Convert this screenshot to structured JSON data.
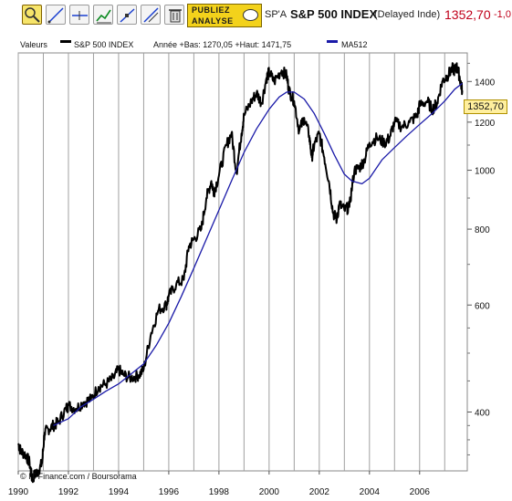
{
  "toolbar": {
    "tools": [
      "zoom-icon",
      "draw-line-icon",
      "horizontal-line-icon",
      "chart-indicator-icon",
      "trend-line-icon",
      "fibonacci-icon",
      "delete-icon"
    ],
    "publiez_line1": "PUBLIEZ",
    "publiez_line2": "ANALYSE"
  },
  "header": {
    "ticker": "SP'A",
    "title": "S&P 500 INDEX",
    "status": "(Delayed Inde)",
    "price": "1352,70",
    "change": "-1,0"
  },
  "legend": {
    "label": "Valeurs",
    "series1": "S&P 500 INDEX",
    "stats": "Année +Bas: 1270,05 +Haut: 1471,75",
    "series2": "MA512"
  },
  "price_box": "1352,70",
  "copyright": "© IT-Finance.com / Boursorama",
  "colors": {
    "price_line": "#000000",
    "ma_line": "#1a1aa8",
    "grid": "#a0a0a0",
    "price_up": "#c0001a",
    "price_box_bg": "#ffef9e"
  },
  "chart_data": {
    "type": "line",
    "y_scale": "log",
    "ylim": [
      320,
      1560
    ],
    "xlim": [
      1990.0,
      2007.9
    ],
    "x_ticks": [
      "1990",
      "1992",
      "1994",
      "1996",
      "1998",
      "2000",
      "2002",
      "2004",
      "2006"
    ],
    "x_tick_values": [
      1990,
      1992,
      1994,
      1996,
      1998,
      2000,
      2002,
      2004,
      2006
    ],
    "y_ticks": [
      "400",
      "600",
      "800",
      "1000",
      "1200",
      "1400"
    ],
    "y_tick_values": [
      400,
      600,
      800,
      1000,
      1200,
      1400
    ],
    "series": [
      {
        "name": "S&P 500 INDEX",
        "x": [
          1990.0,
          1990.1,
          1990.3,
          1990.45,
          1990.55,
          1990.65,
          1990.8,
          1990.95,
          1991.05,
          1991.2,
          1991.4,
          1991.6,
          1991.9,
          1992.0,
          1992.3,
          1992.6,
          1992.9,
          1993.2,
          1993.5,
          1993.8,
          1994.0,
          1994.2,
          1994.5,
          1994.8,
          1995.0,
          1995.3,
          1995.6,
          1995.9,
          1996.0,
          1996.3,
          1996.6,
          1996.8,
          1997.0,
          1997.3,
          1997.5,
          1997.7,
          1997.8,
          1998.0,
          1998.3,
          1998.5,
          1998.7,
          1998.9,
          1999.0,
          1999.3,
          1999.5,
          1999.7,
          1999.9,
          2000.0,
          2000.2,
          2000.5,
          2000.7,
          2000.8,
          2001.0,
          2001.2,
          2001.4,
          2001.6,
          2001.7,
          2001.8,
          2002.0,
          2002.2,
          2002.4,
          2002.55,
          2002.7,
          2002.8,
          2003.0,
          2003.2,
          2003.4,
          2003.6,
          2003.8,
          2004.0,
          2004.3,
          2004.6,
          2004.8,
          2005.0,
          2005.3,
          2005.6,
          2005.9,
          2006.0,
          2006.3,
          2006.5,
          2006.7,
          2006.9,
          2007.1,
          2007.3,
          2007.4,
          2007.5,
          2007.6,
          2007.7
        ],
        "values": [
          355,
          345,
          340,
          330,
          310,
          315,
          320,
          330,
          370,
          375,
          380,
          385,
          405,
          410,
          405,
          415,
          420,
          440,
          445,
          455,
          470,
          460,
          455,
          460,
          470,
          540,
          590,
          600,
          620,
          650,
          660,
          750,
          770,
          800,
          900,
          960,
          920,
          980,
          1100,
          1150,
          990,
          1150,
          1230,
          1300,
          1340,
          1290,
          1420,
          1450,
          1400,
          1460,
          1430,
          1350,
          1300,
          1160,
          1220,
          1140,
          1050,
          1100,
          1150,
          1050,
          950,
          850,
          830,
          880,
          860,
          870,
          1000,
          1010,
          1040,
          1110,
          1130,
          1110,
          1130,
          1200,
          1180,
          1200,
          1230,
          1280,
          1300,
          1260,
          1290,
          1400,
          1430,
          1470,
          1460,
          1480,
          1420,
          1352.7
        ]
      },
      {
        "name": "MA512",
        "x": [
          1991.4,
          1992.0,
          1992.5,
          1993.0,
          1993.5,
          1994.0,
          1994.5,
          1995.0,
          1995.5,
          1996.0,
          1996.5,
          1997.0,
          1997.5,
          1998.0,
          1998.5,
          1999.0,
          1999.5,
          2000.0,
          2000.4,
          2000.7,
          2001.0,
          2001.4,
          2001.8,
          2002.2,
          2002.6,
          2003.0,
          2003.3,
          2003.7,
          2004.0,
          2004.5,
          2005.0,
          2005.5,
          2006.0,
          2006.5,
          2007.0,
          2007.4,
          2007.7
        ],
        "values": [
          380,
          390,
          408,
          420,
          433,
          445,
          462,
          480,
          515,
          560,
          620,
          690,
          770,
          860,
          960,
          1070,
          1170,
          1260,
          1320,
          1345,
          1345,
          1310,
          1240,
          1150,
          1060,
          985,
          960,
          950,
          970,
          1040,
          1090,
          1140,
          1190,
          1240,
          1300,
          1360,
          1390
        ]
      }
    ]
  }
}
